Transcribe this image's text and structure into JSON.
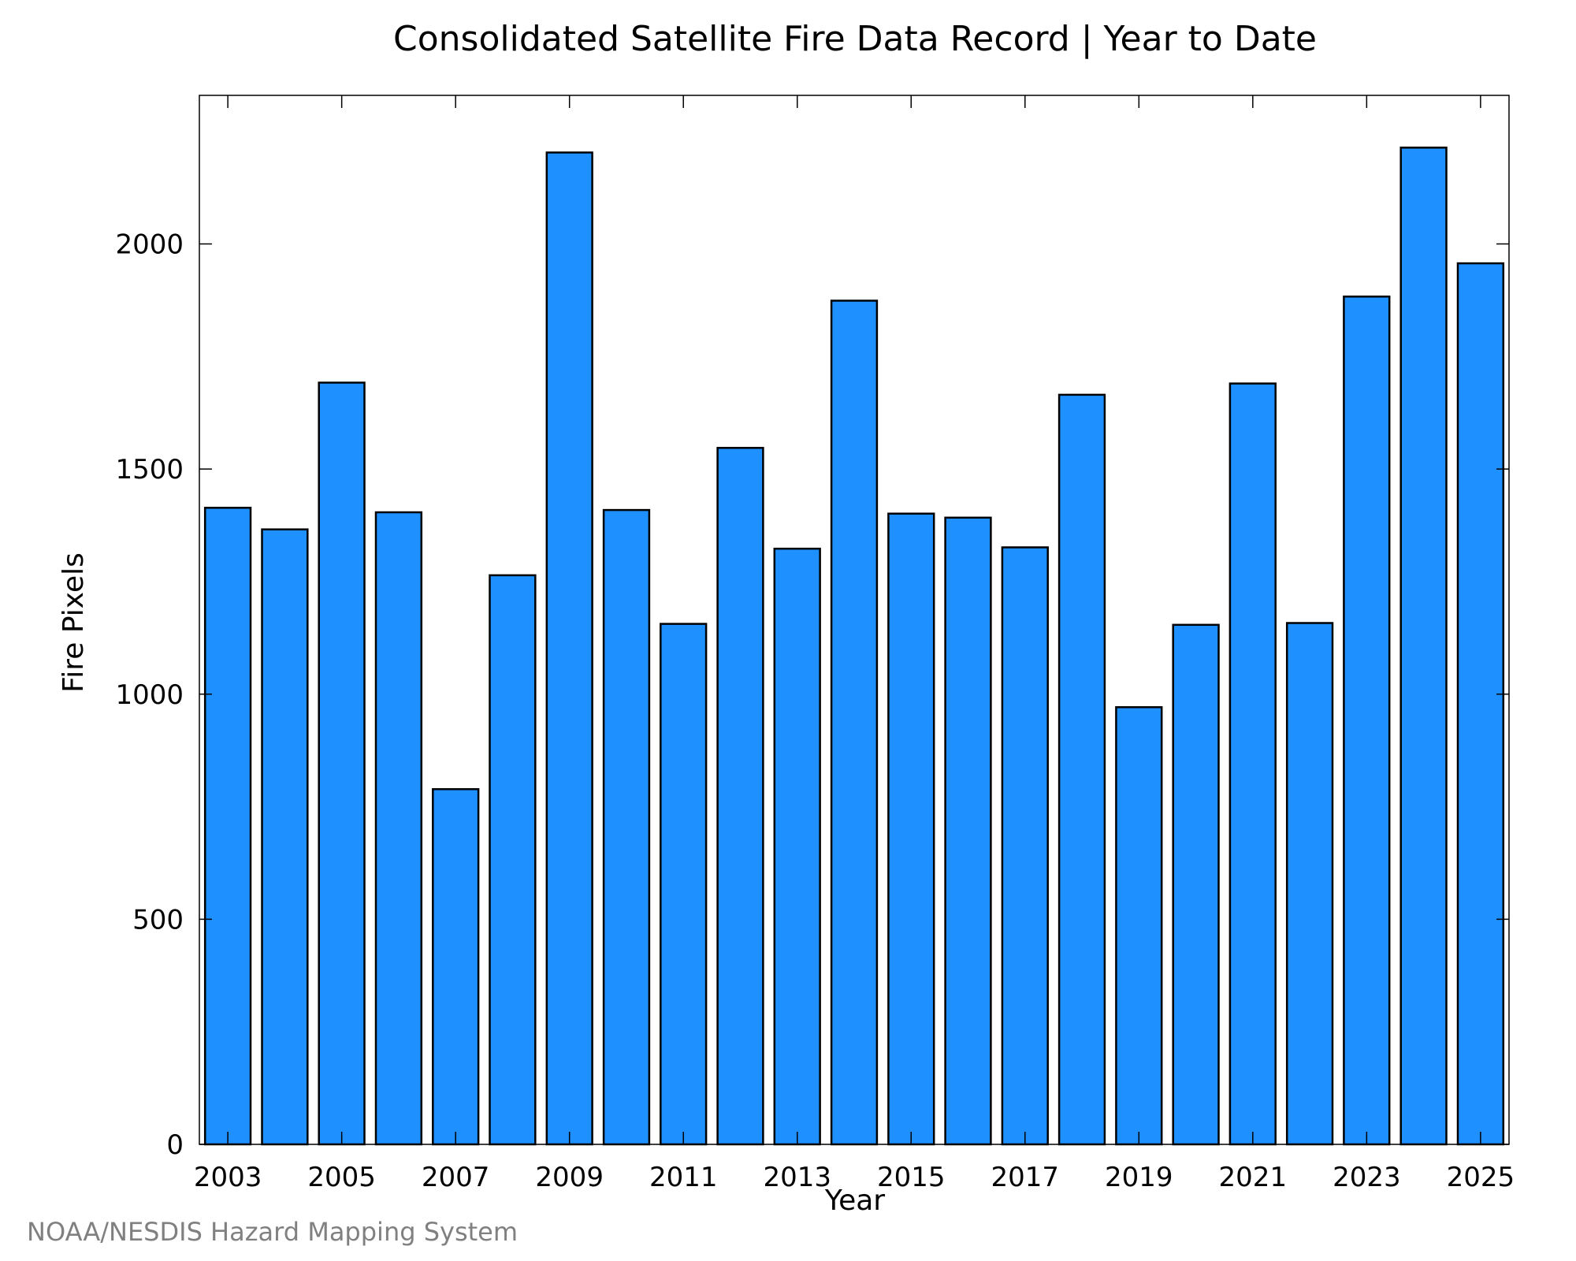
{
  "chart_data": {
    "type": "bar",
    "title": "Consolidated Satellite Fire Data Record | Year to Date",
    "xlabel": "Year",
    "ylabel": "Fire Pixels",
    "categories": [
      "2003",
      "2004",
      "2005",
      "2006",
      "2007",
      "2008",
      "2009",
      "2010",
      "2011",
      "2012",
      "2013",
      "2014",
      "2015",
      "2016",
      "2017",
      "2018",
      "2019",
      "2020",
      "2021",
      "2022",
      "2023",
      "2024",
      "2025"
    ],
    "values": [
      1414,
      1366,
      1692,
      1404,
      789,
      1264,
      2203,
      1409,
      1156,
      1547,
      1323,
      1874,
      1401,
      1392,
      1326,
      1665,
      971,
      1154,
      1690,
      1158,
      1883,
      2214,
      1957
    ],
    "x_tick_labels": [
      "2003",
      "2005",
      "2007",
      "2009",
      "2011",
      "2013",
      "2015",
      "2017",
      "2019",
      "2021",
      "2023",
      "2025"
    ],
    "y_ticks": [
      0,
      500,
      1000,
      1500,
      2000
    ],
    "ylim": [
      0,
      2330
    ],
    "grid": false,
    "legend": "none",
    "bar_color": "#1e90ff",
    "edge_color": "#000000"
  },
  "footer": {
    "credit": "NOAA/NESDIS Hazard Mapping System"
  }
}
